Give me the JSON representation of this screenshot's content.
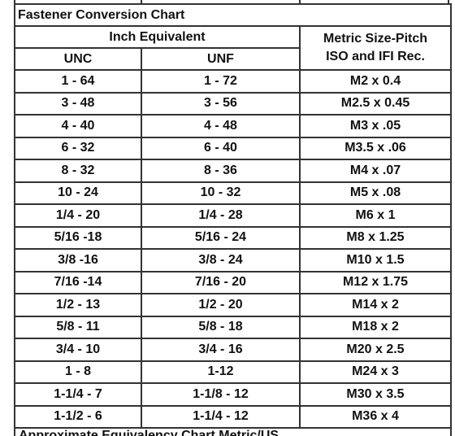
{
  "table": {
    "title": "Fastener Conversion Chart",
    "group_header": "Inch Equivalent",
    "columns": [
      "UNC",
      "UNF"
    ],
    "metric_header": [
      "Metric Size-Pitch",
      "ISO and IFI Rec."
    ],
    "rows": [
      [
        "1 - 64",
        "1 - 72",
        "M2 x 0.4"
      ],
      [
        "3 - 48",
        "3 - 56",
        "M2.5 x 0.45"
      ],
      [
        "4 - 40",
        "4 - 48",
        "M3 x .05"
      ],
      [
        "6 - 32",
        "6 - 40",
        "M3.5 x .06"
      ],
      [
        "8 - 32",
        "8 - 36",
        "M4 x .07"
      ],
      [
        "10 - 24",
        "10 - 32",
        "M5 x .08"
      ],
      [
        "1/4 - 20",
        "1/4 - 28",
        "M6 x 1"
      ],
      [
        "5/16 -18",
        "5/16 - 24",
        "M8 x 1.25"
      ],
      [
        "3/8 -16",
        "3/8 - 24",
        "M10 x 1.5"
      ],
      [
        "7/16 -14",
        "7/16 - 20",
        "M12 x 1.75"
      ],
      [
        "1/2 - 13",
        "1/2 - 20",
        "M14 x 2"
      ],
      [
        "5/8 - 11",
        "5/8 - 18",
        "M18 x 2"
      ],
      [
        "3/4 - 10",
        "3/4 - 16",
        "M20 x 2.5"
      ],
      [
        "1 - 8",
        "1-12",
        "M24 x 3"
      ],
      [
        "1-1/4 - 7",
        "1-1/8 - 12",
        "M30 x 3.5"
      ],
      [
        "1-1/2 - 6",
        "1-1/4 - 12",
        "M36 x 4"
      ]
    ],
    "footer": "Approximate Equivalency Chart Metric/US"
  }
}
